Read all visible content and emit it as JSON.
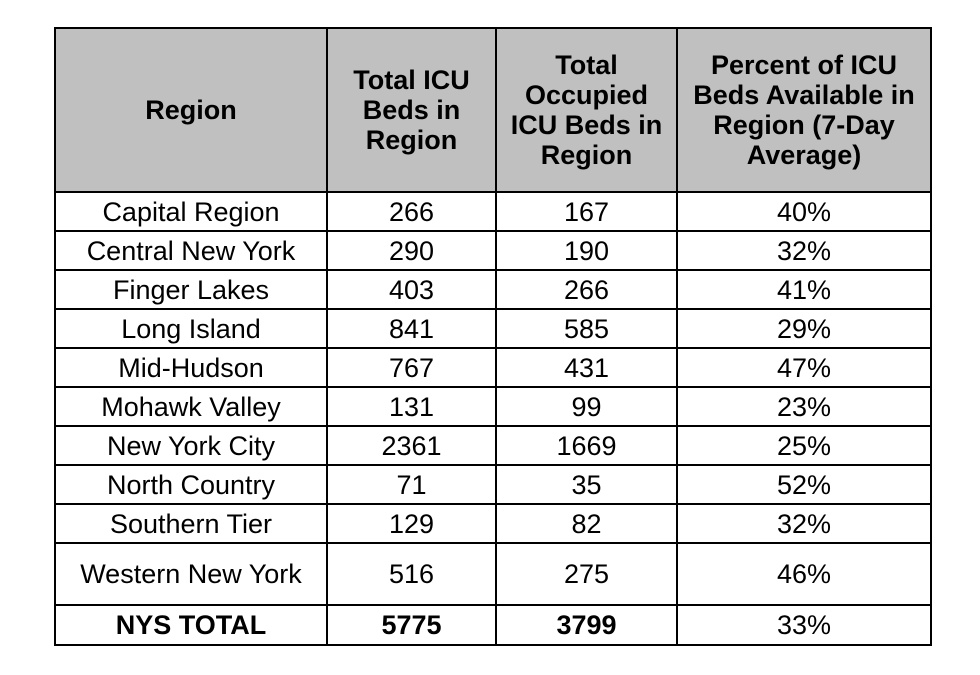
{
  "table": {
    "headers": [
      "Region",
      "Total ICU Beds in Region",
      "Total Occupied ICU Beds in Region",
      "Percent of ICU Beds Available in Region (7-Day Average)"
    ],
    "rows": [
      {
        "region": "Capital Region",
        "total_beds": "266",
        "occupied_beds": "167",
        "percent_available": "40%"
      },
      {
        "region": "Central New York",
        "total_beds": "290",
        "occupied_beds": "190",
        "percent_available": "32%"
      },
      {
        "region": "Finger Lakes",
        "total_beds": "403",
        "occupied_beds": "266",
        "percent_available": "41%"
      },
      {
        "region": "Long Island",
        "total_beds": "841",
        "occupied_beds": "585",
        "percent_available": "29%"
      },
      {
        "region": "Mid-Hudson",
        "total_beds": "767",
        "occupied_beds": "431",
        "percent_available": "47%"
      },
      {
        "region": "Mohawk Valley",
        "total_beds": "131",
        "occupied_beds": "99",
        "percent_available": "23%"
      },
      {
        "region": "New York City",
        "total_beds": "2361",
        "occupied_beds": "1669",
        "percent_available": "25%"
      },
      {
        "region": "North Country",
        "total_beds": "71",
        "occupied_beds": "35",
        "percent_available": "52%"
      },
      {
        "region": "Southern Tier",
        "total_beds": "129",
        "occupied_beds": "82",
        "percent_available": "32%"
      },
      {
        "region": "Western New York",
        "total_beds": "516",
        "occupied_beds": "275",
        "percent_available": "46%"
      }
    ],
    "total": {
      "region": "NYS TOTAL",
      "total_beds": "5775",
      "occupied_beds": "3799",
      "percent_available": "33%"
    }
  },
  "colors": {
    "header_background": "#c0c0c0",
    "border": "#000000",
    "text": "#000000"
  }
}
